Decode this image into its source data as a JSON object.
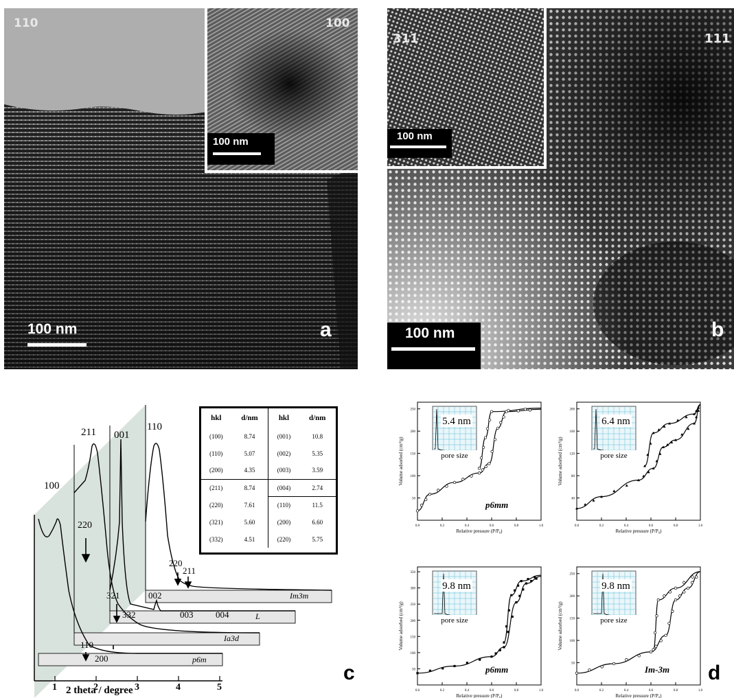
{
  "panel_a": {
    "zone_main": "110",
    "zone_inset": "100",
    "scale_main": "100 nm",
    "scale_inset": "100 nm",
    "letter": "a"
  },
  "panel_b": {
    "zone_main": "111",
    "zone_inset": "311",
    "scale_main": "100 nm",
    "scale_inset": "100 nm",
    "letter": "b"
  },
  "panel_c": {
    "letter": "c",
    "xlabel": "2 theta / degree",
    "xticks": [
      "1",
      "2",
      "3",
      "4",
      "5"
    ],
    "series": [
      {
        "name": "p6m",
        "peaks": [
          "100",
          "110",
          "200"
        ]
      },
      {
        "name": "Ia3d",
        "peaks": [
          "211",
          "220",
          "321",
          "332"
        ]
      },
      {
        "name": "L",
        "peaks": [
          "001",
          "002",
          "003",
          "004"
        ]
      },
      {
        "name": "Im3m",
        "peaks": [
          "110",
          "220",
          "211"
        ]
      }
    ],
    "table": {
      "headers": [
        "hkl",
        "d/nm",
        "hkl",
        "d/nm"
      ],
      "rows": [
        [
          "(100)",
          "8.74",
          "(001)",
          "10.8"
        ],
        [
          "(110)",
          "5.07",
          "(002)",
          "5.35"
        ],
        [
          "(200)",
          "4.35",
          "(003)",
          "3.59"
        ],
        [
          "(211)",
          "8.74",
          "(004)",
          "2.74"
        ],
        [
          "(220)",
          "7.61",
          "(110)",
          "11.5"
        ],
        [
          "(321)",
          "5.60",
          "(200)",
          "6.60"
        ],
        [
          "(332)",
          "4.51",
          "(220)",
          "5.75"
        ]
      ]
    }
  },
  "panel_d": {
    "letter": "d",
    "plots": [
      {
        "pore": "5.4 nm",
        "label": "p6mm",
        "ylabel": "Volume adsorbed (cm³/g)",
        "xlabel": "Relative pressure (P/P₀)",
        "inset_caption": "pore size",
        "yticks": [
          "50",
          "100",
          "150",
          "200",
          "250"
        ]
      },
      {
        "pore": "6.4 nm",
        "label": "",
        "ylabel": "Volume adsorbed (cm³/g)",
        "xlabel": "Relative pressure (P/P₀)",
        "inset_caption": "pore size",
        "yticks": [
          "40",
          "80",
          "120",
          "160",
          "200"
        ]
      },
      {
        "pore": "9.8 nm",
        "label": "p6mm",
        "ylabel": "Volume adsorbed (cm³/g)",
        "xlabel": "Relative pressure (P/P₀)",
        "inset_caption": "pore size",
        "yticks": [
          "50",
          "100",
          "150",
          "200",
          "250",
          "300",
          "350"
        ]
      },
      {
        "pore": "9.8 nm",
        "label": "Im-3m",
        "ylabel": "Volume adsorbed (cm³/g)",
        "xlabel": "Relative pressure (P/P₀)",
        "inset_caption": "pore size",
        "yticks": [
          "50",
          "100",
          "150",
          "200",
          "250"
        ]
      }
    ],
    "xticks": [
      "0.0",
      "0.2",
      "0.4",
      "0.6",
      "0.8",
      "1.0"
    ]
  }
}
